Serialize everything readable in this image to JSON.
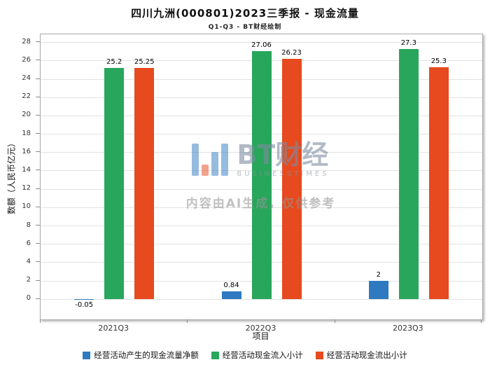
{
  "title": "四川九洲(000801)2023三季报 - 现金流量",
  "subtitle": "Q1-Q3 - BT财经绘制",
  "watermark": {
    "brand": "BT财经",
    "brand_sub": "BUSINESSTIMES",
    "notice": "内容由AI生成，仅供参考"
  },
  "chart_data": {
    "type": "bar",
    "title": "四川九洲(000801)2023三季报 - 现金流量",
    "subtitle": "Q1-Q3 - BT财经绘制",
    "xlabel": "项目",
    "ylabel": "数额（人民币亿元）",
    "categories": [
      "2021Q3",
      "2022Q3",
      "2023Q3"
    ],
    "series": [
      {
        "name": "经营活动产生的现金流量净额",
        "color": "#2e79c0",
        "values": [
          -0.05,
          0.84,
          2
        ],
        "labels": [
          "-0.05",
          "0.84",
          "2"
        ]
      },
      {
        "name": "经营活动现金流入小计",
        "color": "#28a65c",
        "values": [
          25.2,
          27.06,
          27.3
        ],
        "labels": [
          "25.2",
          "27.06",
          "27.3"
        ]
      },
      {
        "name": "经营活动现金流出小计",
        "color": "#e64a1e",
        "values": [
          25.25,
          26.23,
          25.3
        ],
        "labels": [
          "25.25",
          "26.23",
          "25.3"
        ]
      }
    ],
    "ylim": [
      -2.2,
      28.9
    ],
    "yticks": [
      0,
      2,
      4,
      6,
      8,
      10,
      12,
      14,
      16,
      18,
      20,
      22,
      24,
      26,
      28
    ],
    "grid": true,
    "legend_position": "bottom"
  }
}
